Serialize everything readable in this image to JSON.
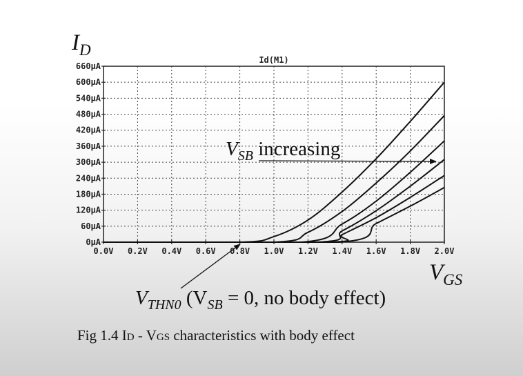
{
  "chart_data": {
    "type": "line",
    "title": "Id(M1)",
    "ylabel": {
      "main": "I",
      "sub": "D"
    },
    "xlabel": {
      "main": "V",
      "sub": "GS"
    },
    "xlim": [
      0,
      2.0
    ],
    "ylim": [
      0,
      660
    ],
    "grid": true,
    "x_ticks": [
      "0.0V",
      "0.2V",
      "0.4V",
      "0.6V",
      "0.8V",
      "1.0V",
      "1.2V",
      "1.4V",
      "1.6V",
      "1.8V",
      "2.0V"
    ],
    "y_ticks": [
      "0µA",
      "60µA",
      "120µA",
      "180µA",
      "240µA",
      "300µA",
      "360µA",
      "420µA",
      "480µA",
      "540µA",
      "600µA",
      "660µA"
    ],
    "series": [
      {
        "x": [
          0.0,
          0.8,
          1.0,
          1.2,
          1.4,
          1.6,
          1.8,
          2.0
        ],
        "y": [
          0,
          0,
          21,
          83,
          188,
          313,
          453,
          600
        ]
      },
      {
        "x": [
          0.0,
          1.0,
          1.2,
          1.4,
          1.6,
          1.8,
          2.0
        ],
        "y": [
          0,
          0,
          37,
          115,
          222,
          342,
          475
        ]
      },
      {
        "x": [
          0.0,
          1.16,
          1.4,
          1.6,
          1.8,
          2.0
        ],
        "y": [
          0,
          0,
          68,
          154,
          262,
          380
        ]
      },
      {
        "x": [
          0.0,
          1.25,
          1.4,
          1.6,
          1.8,
          2.0
        ],
        "y": [
          0,
          0,
          42,
          118,
          210,
          310
        ]
      },
      {
        "x": [
          0.0,
          1.32,
          1.4,
          1.6,
          1.8,
          2.0
        ],
        "y": [
          0,
          0,
          28,
          92,
          168,
          250
        ]
      },
      {
        "x": [
          0.0,
          1.38,
          1.6,
          1.8,
          2.0
        ],
        "y": [
          0,
          0,
          70,
          135,
          205
        ]
      }
    ],
    "annotations": {
      "vsb": {
        "main": "V",
        "sub": "SB",
        "text": " increasing"
      },
      "vthn0": {
        "main": "V",
        "sub": "THN0",
        "open": " (V",
        "sub2": "SB",
        "rest": " = 0, no body effect)"
      }
    }
  },
  "caption": {
    "prefix": "Fig 1.4 I",
    "sub1": "D",
    "middle": " - V",
    "sub2": "GS",
    "suffix": " characteristics with body effect"
  }
}
